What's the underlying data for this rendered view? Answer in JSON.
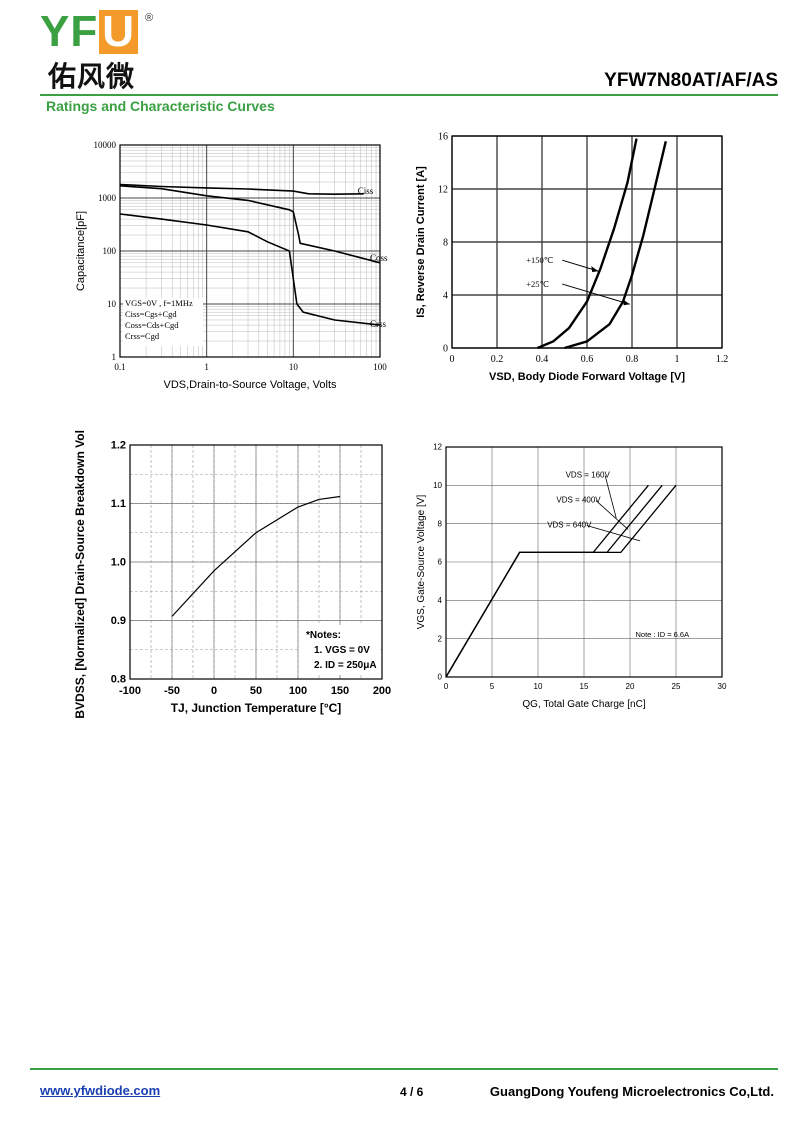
{
  "header": {
    "logo_text": "YFU",
    "logo_reg": "®",
    "logo_cn": "佑风微",
    "model": "YFW7N80AT/AF/AS",
    "section_title": "Ratings and Characteristic Curves"
  },
  "footer": {
    "url": "www.yfwdiode.com",
    "page": "4 / 6",
    "company": "GuangDong Youfeng Microelectronics Co,Ltd."
  },
  "colors": {
    "brand_green": "#3aa042",
    "brand_orange": "#f39a2a",
    "link": "#1a3fb0"
  },
  "chart_data": [
    {
      "type": "line",
      "xscale": "log",
      "yscale": "log",
      "xlabel": "VDS,Drain-to-Source Voltage, Volts",
      "ylabel": "Capacitance[pF]",
      "xlim": [
        0.1,
        100
      ],
      "ylim": [
        1,
        10000
      ],
      "x_ticks": [
        "0.1",
        "1",
        "10",
        "100"
      ],
      "y_ticks": [
        "1",
        "10",
        "100",
        "1000",
        "10000"
      ],
      "annotation_lines": [
        "VGS=0V , f=1MHz",
        "Ciss=Cgs+Cgd",
        "Coss=Cds+Cgd",
        "Crss=Cgd"
      ],
      "series": [
        {
          "name": "Ciss",
          "points": [
            [
              0.1,
              1800
            ],
            [
              0.3,
              1650
            ],
            [
              1,
              1550
            ],
            [
              3,
              1480
            ],
            [
              10,
              1350
            ],
            [
              15,
              1200
            ],
            [
              30,
              1180
            ],
            [
              65,
              1200
            ]
          ]
        },
        {
          "name": "Coss",
          "points": [
            [
              0.1,
              1700
            ],
            [
              0.3,
              1500
            ],
            [
              1,
              1100
            ],
            [
              3,
              900
            ],
            [
              9,
              600
            ],
            [
              10,
              550
            ],
            [
              11.5,
              200
            ],
            [
              12,
              140
            ],
            [
              30,
              100
            ],
            [
              100,
              60
            ]
          ]
        },
        {
          "name": "Crss",
          "points": [
            [
              0.1,
              500
            ],
            [
              0.3,
              400
            ],
            [
              1,
              310
            ],
            [
              3,
              230
            ],
            [
              5,
              150
            ],
            [
              9,
              100
            ],
            [
              10,
              30
            ],
            [
              11,
              10
            ],
            [
              13,
              7
            ],
            [
              30,
              5
            ],
            [
              100,
              4
            ]
          ]
        }
      ]
    },
    {
      "type": "line",
      "xlabel": "VSD, Body Diode Forward Voltage [V]",
      "ylabel": "IS, Reverse Drain Current [A]",
      "xlim": [
        0,
        1.2
      ],
      "ylim": [
        0,
        16
      ],
      "x_ticks": [
        "0",
        "0.2",
        "0.4",
        "0.6",
        "0.8",
        "1",
        "1.2"
      ],
      "y_ticks": [
        "0",
        "4",
        "8",
        "12",
        "16"
      ],
      "series": [
        {
          "name": "+150℃",
          "points": [
            [
              0.38,
              0
            ],
            [
              0.45,
              0.5
            ],
            [
              0.52,
              1.5
            ],
            [
              0.6,
              3.5
            ],
            [
              0.66,
              6
            ],
            [
              0.72,
              9
            ],
            [
              0.78,
              12.5
            ],
            [
              0.82,
              15.8
            ]
          ]
        },
        {
          "name": "+25℃",
          "points": [
            [
              0.5,
              0
            ],
            [
              0.6,
              0.5
            ],
            [
              0.7,
              1.8
            ],
            [
              0.76,
              3.5
            ],
            [
              0.8,
              5.5
            ],
            [
              0.85,
              8.5
            ],
            [
              0.9,
              12
            ],
            [
              0.95,
              15.6
            ]
          ]
        }
      ]
    },
    {
      "type": "line",
      "xlabel": "TJ, Junction Temperature [°C]",
      "ylabel": "BVDSS, [Normalized] Drain-Source Breakdown Voltage",
      "xlim": [
        -100,
        200
      ],
      "ylim": [
        0.8,
        1.2
      ],
      "x_ticks": [
        "-100",
        "-50",
        "0",
        "50",
        "100",
        "150",
        "200"
      ],
      "y_ticks": [
        "0.8",
        "0.9",
        "1.0",
        "1.1",
        "1.2"
      ],
      "notes": [
        "*Notes:",
        "1. VGS = 0V",
        "2. ID = 250μA"
      ],
      "series": [
        {
          "points": [
            [
              -50,
              0.907
            ],
            [
              0,
              0.985
            ],
            [
              50,
              1.05
            ],
            [
              100,
              1.094
            ],
            [
              125,
              1.107
            ],
            [
              150,
              1.112
            ]
          ]
        }
      ]
    },
    {
      "type": "line",
      "xlabel": "QG, Total Gate Charge [nC]",
      "ylabel": "VGS, Gate-Source Voltage [V]",
      "xlim": [
        0,
        30
      ],
      "ylim": [
        0,
        12
      ],
      "x_ticks": [
        "0",
        "5",
        "10",
        "15",
        "20",
        "25",
        "30"
      ],
      "y_ticks": [
        "0",
        "2",
        "4",
        "6",
        "8",
        "10",
        "12"
      ],
      "note": "Note : ID = 6.6A",
      "series": [
        {
          "name": "VDS = 160V",
          "points": [
            [
              0,
              0
            ],
            [
              8,
              6.5
            ],
            [
              16,
              6.5
            ],
            [
              22,
              10
            ]
          ]
        },
        {
          "name": "VDS = 400V",
          "points": [
            [
              0,
              0
            ],
            [
              8,
              6.5
            ],
            [
              17.5,
              6.5
            ],
            [
              23.5,
              10
            ]
          ]
        },
        {
          "name": "VDS = 640V",
          "points": [
            [
              0,
              0
            ],
            [
              8,
              6.5
            ],
            [
              19,
              6.5
            ],
            [
              25,
              10
            ]
          ]
        }
      ]
    }
  ]
}
